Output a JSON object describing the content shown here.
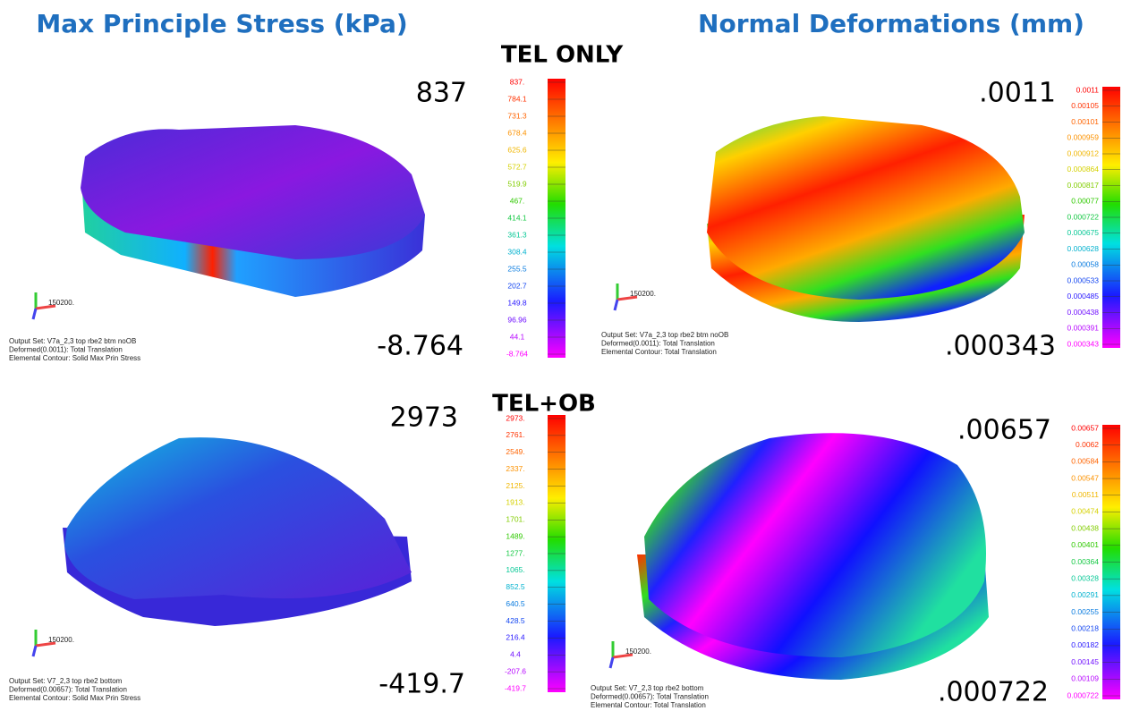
{
  "titles": {
    "left": "Max Principle Stress (kPa)",
    "right": "Normal Deformations (mm)"
  },
  "rows": [
    {
      "label": "TEL ONLY",
      "panels": [
        {
          "max": "837",
          "min": "-8.764",
          "triad": "150200.",
          "scale": [
            "837.",
            "784.1",
            "731.3",
            "678.4",
            "625.6",
            "572.7",
            "519.9",
            "467.",
            "414.1",
            "361.3",
            "308.4",
            "255.5",
            "202.7",
            "149.8",
            "96.96",
            "44.1",
            "-8.764"
          ],
          "info": [
            "Output Set: V7a_2,3 top rbe2 btm noOB",
            "Deformed(0.0011): Total Translation",
            "Elemental Contour: Solid Max Prin Stress"
          ]
        },
        {
          "max": ".0011",
          "min": ".000343",
          "triad": "150200.",
          "scale": [
            "0.0011",
            "0.00105",
            "0.00101",
            "0.000959",
            "0.000912",
            "0.000864",
            "0.000817",
            "0.00077",
            "0.000722",
            "0.000675",
            "0.000628",
            "0.00058",
            "0.000533",
            "0.000485",
            "0.000438",
            "0.000391",
            "0.000343"
          ],
          "info": [
            "Output Set: V7a_2,3 top rbe2 btm noOB",
            "Deformed(0.0011): Total Translation",
            "Elemental Contour: Total Translation"
          ]
        }
      ]
    },
    {
      "label": "TEL+OB",
      "panels": [
        {
          "max": "2973",
          "min": "-419.7",
          "triad": "150200.",
          "scale": [
            "2973.",
            "2761.",
            "2549.",
            "2337.",
            "2125.",
            "1913.",
            "1701.",
            "1489.",
            "1277.",
            "1065.",
            "852.5",
            "640.5",
            "428.5",
            "216.4",
            "4.4",
            "-207.6",
            "-419.7"
          ],
          "info": [
            "Output Set: V7_2,3 top rbe2 bottom",
            "Deformed(0.00657): Total Translation",
            "Elemental Contour: Solid Max Prin Stress"
          ]
        },
        {
          "max": ".00657",
          "min": ".000722",
          "triad": "150200.",
          "scale": [
            "0.00657",
            "0.0062",
            "0.00584",
            "0.00547",
            "0.00511",
            "0.00474",
            "0.00438",
            "0.00401",
            "0.00364",
            "0.00328",
            "0.00291",
            "0.00255",
            "0.00218",
            "0.00182",
            "0.00145",
            "0.00109",
            "0.000722"
          ],
          "info": [
            "Output Set: V7_2,3 top rbe2 bottom",
            "Deformed(0.00657): Total Translation",
            "Elemental Contour: Total Translation"
          ]
        }
      ]
    }
  ]
}
